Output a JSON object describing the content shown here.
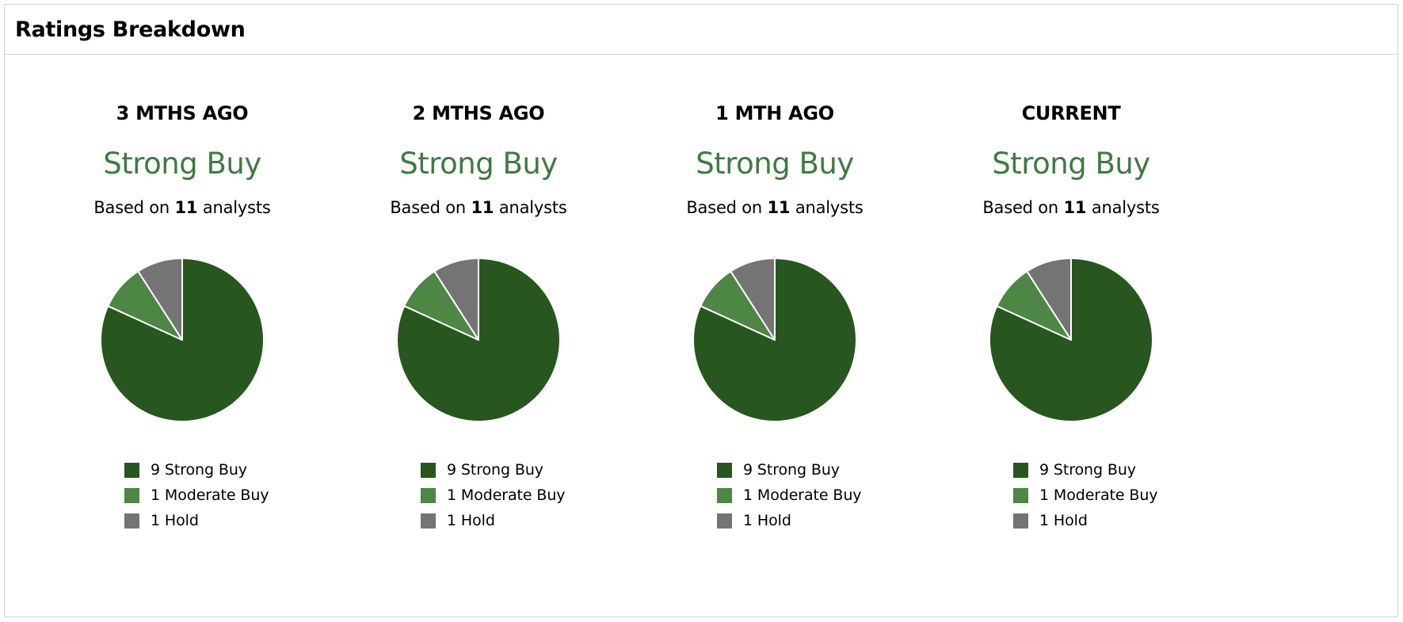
{
  "title": "Ratings Breakdown",
  "colors": {
    "strong_buy": "#27561f",
    "moderate_buy": "#4d8645",
    "hold": "#747474",
    "consensus_text": "#3e7a41"
  },
  "panels": [
    {
      "period": "3 MTHS AGO",
      "consensus": "Strong Buy",
      "based_prefix": "Based on ",
      "analyst_count": "11",
      "based_suffix": " analysts",
      "legend": [
        "9 Strong Buy",
        "1 Moderate Buy",
        "1 Hold"
      ]
    },
    {
      "period": "2 MTHS AGO",
      "consensus": "Strong Buy",
      "based_prefix": "Based on ",
      "analyst_count": "11",
      "based_suffix": " analysts",
      "legend": [
        "9 Strong Buy",
        "1 Moderate Buy",
        "1 Hold"
      ]
    },
    {
      "period": "1 MTH AGO",
      "consensus": "Strong Buy",
      "based_prefix": "Based on ",
      "analyst_count": "11",
      "based_suffix": " analysts",
      "legend": [
        "9 Strong Buy",
        "1 Moderate Buy",
        "1 Hold"
      ]
    },
    {
      "period": "CURRENT",
      "consensus": "Strong Buy",
      "based_prefix": "Based on ",
      "analyst_count": "11",
      "based_suffix": " analysts",
      "legend": [
        "9 Strong Buy",
        "1 Moderate Buy",
        "1 Hold"
      ]
    }
  ],
  "chart_data": [
    {
      "type": "pie",
      "title": "3 MTHS AGO",
      "categories": [
        "Strong Buy",
        "Moderate Buy",
        "Hold"
      ],
      "values": [
        9,
        1,
        1
      ],
      "colors": [
        "#27561f",
        "#4d8645",
        "#747474"
      ],
      "legend_position": "bottom"
    },
    {
      "type": "pie",
      "title": "2 MTHS AGO",
      "categories": [
        "Strong Buy",
        "Moderate Buy",
        "Hold"
      ],
      "values": [
        9,
        1,
        1
      ],
      "colors": [
        "#27561f",
        "#4d8645",
        "#747474"
      ],
      "legend_position": "bottom"
    },
    {
      "type": "pie",
      "title": "1 MTH AGO",
      "categories": [
        "Strong Buy",
        "Moderate Buy",
        "Hold"
      ],
      "values": [
        9,
        1,
        1
      ],
      "colors": [
        "#27561f",
        "#4d8645",
        "#747474"
      ],
      "legend_position": "bottom"
    },
    {
      "type": "pie",
      "title": "CURRENT",
      "categories": [
        "Strong Buy",
        "Moderate Buy",
        "Hold"
      ],
      "values": [
        9,
        1,
        1
      ],
      "colors": [
        "#27561f",
        "#4d8645",
        "#747474"
      ],
      "legend_position": "bottom"
    }
  ]
}
